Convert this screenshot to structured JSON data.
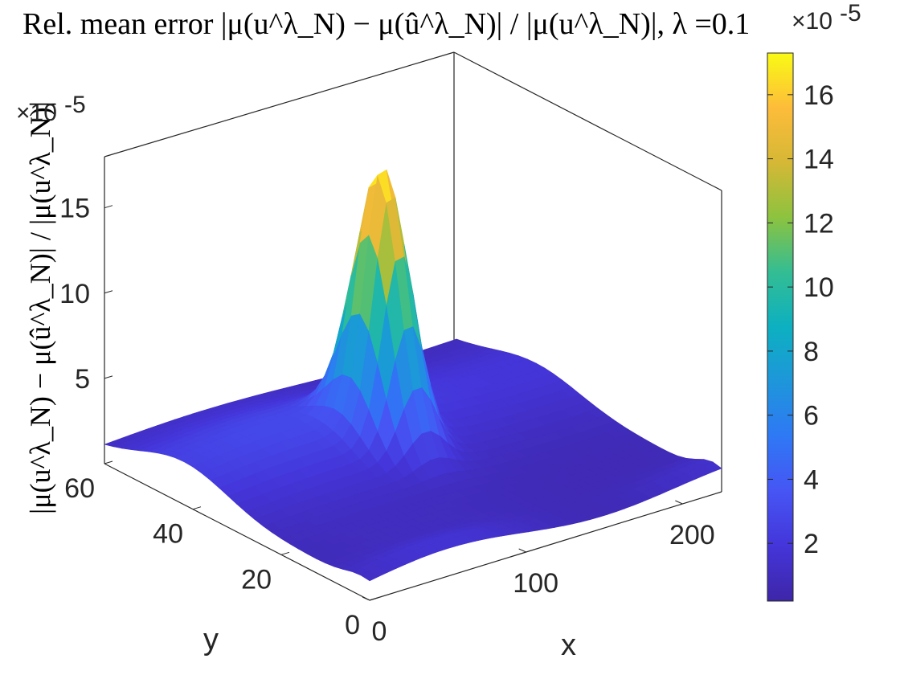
{
  "chart_data": {
    "type": "surface",
    "title": "Rel. mean error |μ(u^λ_N) − μ(û^λ_N)| / |μ(u^λ_N)|, λ =0.1",
    "title_parts": {
      "prefix": "Rel. mean error",
      "formula": "|μ(u",
      "lambda_label": "λ =0.1"
    },
    "xlabel": "x",
    "ylabel": "y",
    "zlabel": "|μ(u^λ_N) − μ(û^λ_N)| / |μ(u^λ_N)|",
    "z_exponent": "×10",
    "z_exponent_power": "-5",
    "colorbar_exponent": "×10",
    "colorbar_exponent_power": "-5",
    "x_ticks": [
      "0",
      "100",
      "200"
    ],
    "y_ticks": [
      "0",
      "20",
      "40",
      "60"
    ],
    "z_ticks": [
      "5",
      "10",
      "15"
    ],
    "colorbar_ticks": [
      "2",
      "4",
      "6",
      "8",
      "10",
      "12",
      "14",
      "16"
    ],
    "xlim": [
      0,
      225
    ],
    "ylim": [
      0,
      60
    ],
    "zlim": [
      0,
      18
    ],
    "clim": [
      0.2,
      17.3
    ],
    "colormap": "parula",
    "grid": false,
    "peak": {
      "x": 110,
      "y": 36,
      "z": 17.3
    },
    "surface_description": "low smooth ridge along y≈40 at ~2-3e-5 with a sharp peak near x≈110,y≈36 reaching ~1.7e-4; background level ~0.5-1.5e-5"
  }
}
